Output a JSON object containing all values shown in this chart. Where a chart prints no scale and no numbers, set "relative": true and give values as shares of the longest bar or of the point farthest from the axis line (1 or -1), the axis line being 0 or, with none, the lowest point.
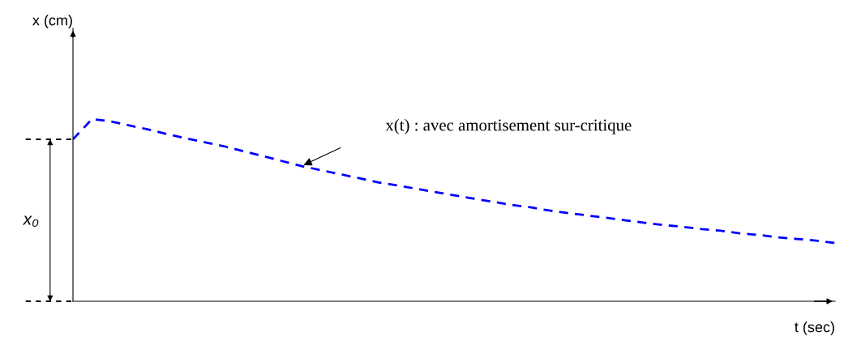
{
  "chart_data": {
    "type": "line",
    "relative": true,
    "xlabel": "t (sec)",
    "categories": [
      null,
      null,
      null,
      null,
      null,
      null,
      null,
      null,
      null,
      null,
      null,
      null,
      null,
      null,
      null,
      null,
      null,
      null,
      null,
      null,
      null,
      null,
      null,
      null,
      null,
      null,
      null,
      null,
      null,
      null,
      null,
      null,
      null,
      null,
      null,
      null,
      null,
      null,
      null,
      null,
      null
    ],
    "series": [
      {
        "color": "#0000ff",
        "values": [
          0.889,
          1.0,
          0.987,
          0.964,
          0.942,
          0.916,
          0.893,
          0.871,
          0.849,
          0.822,
          0.796,
          0.769,
          0.742,
          0.72,
          0.698,
          0.676,
          0.653,
          0.636,
          0.618,
          0.6,
          0.582,
          0.564,
          0.547,
          0.529,
          0.516,
          0.498,
          0.484,
          0.471,
          0.458,
          0.444,
          0.431,
          0.418,
          0.409,
          0.396,
          0.387,
          0.373,
          0.364,
          0.351,
          0.342,
          0.333,
          0.32
        ]
      }
    ],
    "line_style": "dashed",
    "marker": "none",
    "legend": false,
    "annotations": [
      "x(t) : avec amortisement sur-critique",
      "x₀",
      "x (cm)"
    ]
  }
}
